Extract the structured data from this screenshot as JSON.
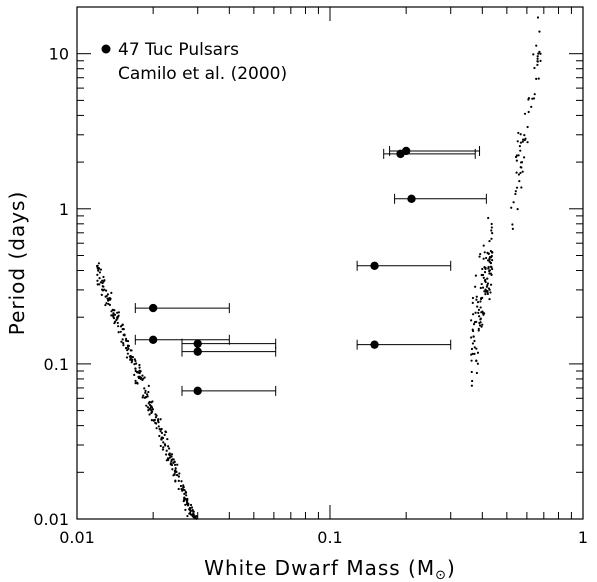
{
  "chart_data": {
    "type": "scatter",
    "xscale": "log",
    "yscale": "log",
    "xlim": [
      0.01,
      1
    ],
    "ylim": [
      0.01,
      20
    ],
    "xlabel": "White Dwarf Mass (M",
    "xlabel_unit": "⊙",
    "xlabel_close": ")",
    "ylabel": "Period (days)",
    "x_ticks": [
      0.01,
      0.1,
      1
    ],
    "x_tick_labels": [
      "0.01",
      "0.1",
      "1"
    ],
    "y_ticks": [
      0.01,
      0.1,
      1,
      10
    ],
    "y_tick_labels": [
      "0.01",
      "0.1",
      "1",
      "10"
    ],
    "legend": {
      "placement": "top-left",
      "line1": "47 Tuc Pulsars",
      "line2": "Camilo et al. (2000)"
    },
    "colors": {
      "points": "#000000",
      "axes": "#000000",
      "background": "#ffffff"
    },
    "series": [
      {
        "name": "47 Tuc Pulsars",
        "points": [
          {
            "x": 0.02,
            "y": 0.229,
            "xerr_low": 0.017,
            "xerr_high": 0.04
          },
          {
            "x": 0.02,
            "y": 0.143,
            "xerr_low": 0.017,
            "xerr_high": 0.04
          },
          {
            "x": 0.03,
            "y": 0.135,
            "xerr_low": 0.026,
            "xerr_high": 0.061
          },
          {
            "x": 0.03,
            "y": 0.12,
            "xerr_low": 0.026,
            "xerr_high": 0.061
          },
          {
            "x": 0.03,
            "y": 0.067,
            "xerr_low": 0.026,
            "xerr_high": 0.061
          },
          {
            "x": 0.15,
            "y": 0.429,
            "xerr_low": 0.128,
            "xerr_high": 0.3
          },
          {
            "x": 0.15,
            "y": 0.133,
            "xerr_low": 0.128,
            "xerr_high": 0.3
          },
          {
            "x": 0.21,
            "y": 1.16,
            "xerr_low": 0.18,
            "xerr_high": 0.415
          },
          {
            "x": 0.19,
            "y": 2.26,
            "xerr_low": 0.163,
            "xerr_high": 0.375
          },
          {
            "x": 0.2,
            "y": 2.36,
            "xerr_low": 0.172,
            "xerr_high": 0.39
          }
        ]
      }
    ],
    "model_bands": [
      {
        "x_range": [
          0.012,
          0.046
        ],
        "log_p_at_x0": -0.39,
        "log_p_slope": -4.2,
        "log_p_spread": 0.07,
        "count": 480
      },
      {
        "x_range": [
          0.36,
          0.44
        ],
        "log_p_at_x0": -0.95,
        "log_p_slope": 8.0,
        "log_p_spread": 0.25,
        "count": 130
      },
      {
        "x_range": [
          0.52,
          0.68
        ],
        "log_p_at_x0": -0.05,
        "log_p_slope": 10.0,
        "log_p_spread": 0.2,
        "count": 60
      }
    ]
  }
}
